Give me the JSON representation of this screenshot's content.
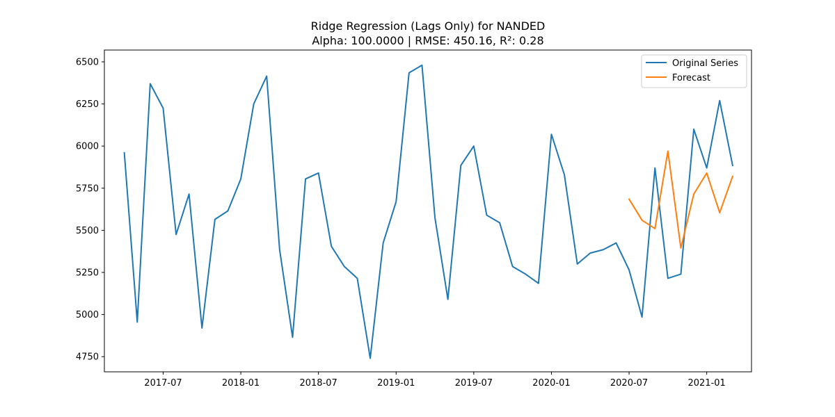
{
  "chart_data": {
    "type": "line",
    "title": "Ridge Regression (Lags Only) for NANDED",
    "subtitle": "Alpha: 100.0000 | RMSE: 450.16, R²: 0.28",
    "xlabel": "",
    "ylabel": "",
    "x_ticks": [
      "2017-07",
      "2018-01",
      "2018-07",
      "2019-01",
      "2019-07",
      "2020-01",
      "2020-07",
      "2021-01"
    ],
    "y_ticks": [
      "4750",
      "5000",
      "5250",
      "5500",
      "5750",
      "6000",
      "6250",
      "6500"
    ],
    "ylim": [
      4660,
      6570
    ],
    "xlim": [
      "2017-02-15",
      "2021-04-15"
    ],
    "grid": false,
    "legend_position": "top-right",
    "series": [
      {
        "name": "Original Series",
        "color": "#1f77b4",
        "x": [
          "2017-04",
          "2017-05",
          "2017-06",
          "2017-07",
          "2017-08",
          "2017-09",
          "2017-10",
          "2017-11",
          "2017-12",
          "2018-01",
          "2018-02",
          "2018-03",
          "2018-04",
          "2018-05",
          "2018-06",
          "2018-07",
          "2018-08",
          "2018-09",
          "2018-10",
          "2018-11",
          "2018-12",
          "2019-01",
          "2019-02",
          "2019-03",
          "2019-04",
          "2019-05",
          "2019-06",
          "2019-07",
          "2019-08",
          "2019-09",
          "2019-10",
          "2019-11",
          "2019-12",
          "2020-01",
          "2020-02",
          "2020-03",
          "2020-04",
          "2020-05",
          "2020-06",
          "2020-07",
          "2020-08",
          "2020-09",
          "2020-10",
          "2020-11",
          "2020-12",
          "2021-01",
          "2021-02",
          "2021-03"
        ],
        "values": [
          5960,
          4955,
          6370,
          6225,
          5475,
          5715,
          4920,
          5565,
          5615,
          5805,
          6250,
          6415,
          5385,
          4865,
          5805,
          5840,
          5405,
          5285,
          5215,
          4740,
          5425,
          5670,
          6435,
          6480,
          5575,
          5090,
          5885,
          6000,
          5590,
          5545,
          5285,
          5240,
          5185,
          6070,
          5830,
          5300,
          5365,
          5385,
          5425,
          5265,
          4985,
          5870,
          5215,
          5240,
          6100,
          5870,
          6270,
          5885
        ]
      },
      {
        "name": "Forecast",
        "color": "#ff7f0e",
        "x": [
          "2020-07",
          "2020-08",
          "2020-09",
          "2020-10",
          "2020-11",
          "2020-12",
          "2021-01",
          "2021-02",
          "2021-03"
        ],
        "values": [
          5685,
          5560,
          5510,
          5970,
          5395,
          5715,
          5840,
          5605,
          5820
        ]
      }
    ]
  }
}
